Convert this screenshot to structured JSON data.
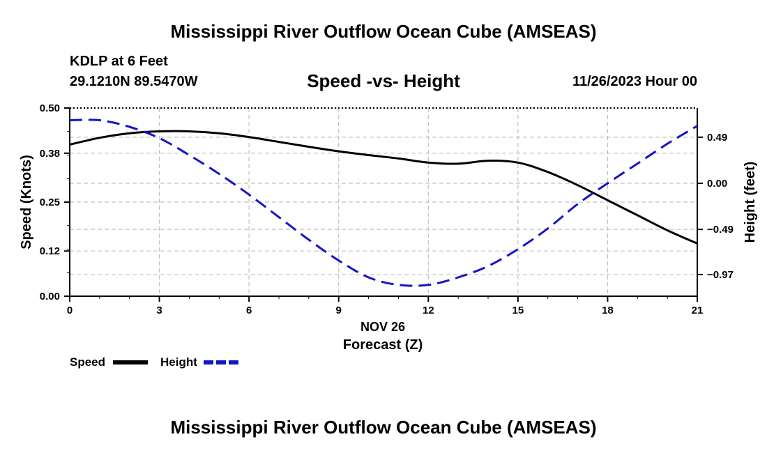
{
  "header": {
    "title": "Mississippi River Outflow Ocean Cube (AMSEAS)",
    "station": "KDLP at 6 Feet",
    "coords": "29.1210N  89.5470W",
    "subtitle": "Speed -vs- Height",
    "datetime": "11/26/2023 Hour 00"
  },
  "footer": {
    "title": "Mississippi River Outflow Ocean Cube (AMSEAS)"
  },
  "chart_data": {
    "type": "line",
    "xlabel_date": "NOV 26",
    "xlabel": "Forecast (Z)",
    "ylabel_left": "Speed (Knots)",
    "ylabel_right": "Height (feet)",
    "xlim": [
      0,
      21
    ],
    "ylim_left": [
      0,
      0.5
    ],
    "ylim_right": [
      -1.2,
      0.8
    ],
    "x_ticks": [
      "0",
      "3",
      "6",
      "9",
      "12",
      "15",
      "18",
      "21"
    ],
    "y_ticks_left": [
      "0.00",
      "0.12",
      "0.25",
      "0.38",
      "0.50"
    ],
    "y_ticks_right": [
      "0.49",
      "0.00",
      "−0.49",
      "−0.97"
    ],
    "y_tick_values_right": [
      0.49,
      0.0,
      -0.49,
      -0.97
    ],
    "grid": true,
    "series": [
      {
        "name": "Speed",
        "color": "#000000",
        "style": "solid",
        "x": [
          0,
          1,
          2,
          3,
          4,
          5,
          6,
          7,
          8,
          9,
          10,
          11,
          12,
          13,
          14,
          15,
          16,
          17,
          18,
          19,
          20,
          21
        ],
        "values": [
          0.403,
          0.421,
          0.433,
          0.438,
          0.438,
          0.433,
          0.423,
          0.41,
          0.397,
          0.385,
          0.375,
          0.366,
          0.355,
          0.352,
          0.36,
          0.355,
          0.33,
          0.295,
          0.255,
          0.215,
          0.175,
          0.14
        ]
      },
      {
        "name": "Height",
        "color": "#1414c8",
        "style": "dashed",
        "x": [
          0,
          1,
          2,
          3,
          4,
          5,
          6,
          7,
          8,
          9,
          10,
          11,
          12,
          13,
          14,
          15,
          16,
          17,
          18,
          19,
          20,
          21
        ],
        "values": [
          0.67,
          0.67,
          0.6,
          0.48,
          0.3,
          0.1,
          -0.12,
          -0.36,
          -0.6,
          -0.82,
          -1.0,
          -1.08,
          -1.08,
          -1.0,
          -0.88,
          -0.7,
          -0.48,
          -0.22,
          0.0,
          0.21,
          0.42,
          0.61
        ]
      }
    ],
    "legend": [
      {
        "label": "Speed",
        "color": "#000000"
      },
      {
        "label": "Height",
        "color": "#1414c8"
      }
    ]
  }
}
